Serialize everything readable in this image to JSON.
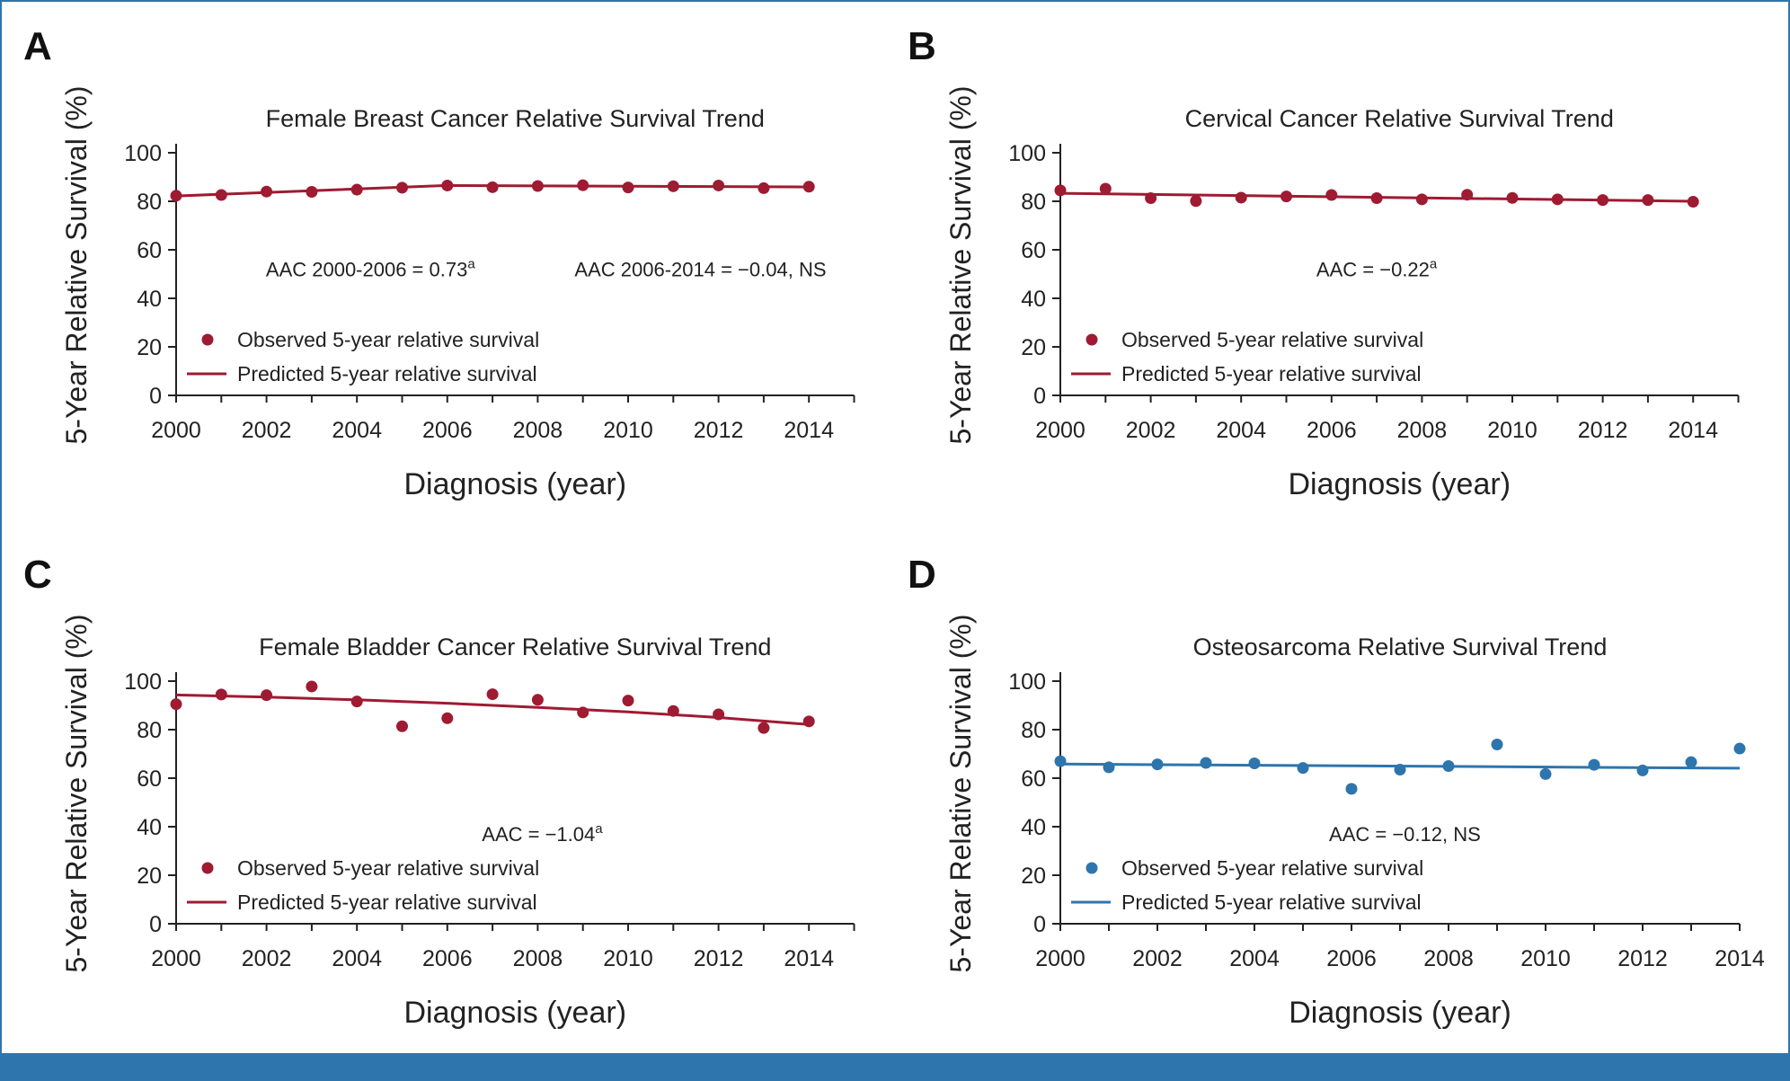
{
  "colors": {
    "red": "#9e1b32",
    "blue": "#2e75ad",
    "border": "#2e75ad"
  },
  "panels": [
    {
      "letter": "A",
      "title": "Female Breast Cancer Relative Survival Trend",
      "ylabel": "5-Year Relative Survival (%)",
      "xlabel": "Diagnosis (year)",
      "color": "#9e1b32",
      "legend": {
        "observed": "Observed 5-year relative survival",
        "predicted": "Predicted 5-year relative survival"
      },
      "annotations": [
        {
          "text": "AAC 2000-2006 = 0.73",
          "sup": "a",
          "year": 2004.3,
          "value": 52
        },
        {
          "text": "AAC 2006-2014 = −0.04, NS",
          "sup": "",
          "year": 2011.6,
          "value": 52
        }
      ]
    },
    {
      "letter": "B",
      "title": "Cervical Cancer Relative Survival Trend",
      "ylabel": "5-Year Relative Survival (%)",
      "xlabel": "Diagnosis (year)",
      "color": "#9e1b32",
      "legend": {
        "observed": "Observed 5-year relative survival",
        "predicted": "Predicted 5-year relative survival"
      },
      "annotations": [
        {
          "text": "AAC = −0.22",
          "sup": "a",
          "year": 2007.0,
          "value": 52
        }
      ]
    },
    {
      "letter": "C",
      "title": "Female Bladder Cancer Relative Survival Trend",
      "ylabel": "5-Year Relative Survival (%)",
      "xlabel": "Diagnosis (year)",
      "color": "#9e1b32",
      "legend": {
        "observed": "Observed 5-year relative survival",
        "predicted": "Predicted 5-year relative survival"
      },
      "annotations": [
        {
          "text": "AAC = −1.04",
          "sup": "a",
          "year": 2008.1,
          "value": 37
        }
      ]
    },
    {
      "letter": "D",
      "title": "Osteosarcoma Relative Survival Trend",
      "ylabel": "5-Year Relative Survival (%)",
      "xlabel": "Diagnosis (year)",
      "color": "#2e75ad",
      "legend": {
        "observed": "Observed 5-year relative survival",
        "predicted": "Predicted 5-year relative survival"
      },
      "annotations": [
        {
          "text": "AAC = −0.12, NS",
          "sup": "",
          "year": 2007.1,
          "value": 37
        }
      ]
    }
  ],
  "chart_data": [
    {
      "type": "scatter",
      "title": "Female Breast Cancer Relative Survival Trend",
      "xlabel": "Diagnosis (year)",
      "ylabel": "5-Year Relative Survival (%)",
      "xlim": [
        2000,
        2015
      ],
      "ylim": [
        0,
        100
      ],
      "xticks": [
        2000,
        2002,
        2004,
        2006,
        2008,
        2010,
        2012,
        2014
      ],
      "yticks": [
        0,
        20,
        40,
        60,
        80,
        100
      ],
      "series": [
        {
          "name": "Observed 5-year relative survival",
          "kind": "points",
          "x": [
            2000,
            2001,
            2002,
            2003,
            2004,
            2005,
            2006,
            2007,
            2008,
            2009,
            2010,
            2011,
            2012,
            2013,
            2014
          ],
          "y": [
            82.3,
            82.6,
            84.0,
            83.9,
            84.8,
            85.6,
            86.5,
            85.8,
            86.3,
            86.6,
            85.7,
            86.2,
            86.5,
            85.4,
            86.0
          ]
        },
        {
          "name": "Predicted 5-year relative survival",
          "kind": "line",
          "x": [
            2000,
            2006,
            2014
          ],
          "y": [
            82.2,
            86.5,
            85.9
          ]
        }
      ]
    },
    {
      "type": "scatter",
      "title": "Cervical Cancer Relative Survival Trend",
      "xlabel": "Diagnosis (year)",
      "ylabel": "5-Year Relative Survival (%)",
      "xlim": [
        2000,
        2015
      ],
      "ylim": [
        0,
        100
      ],
      "xticks": [
        2000,
        2002,
        2004,
        2006,
        2008,
        2010,
        2012,
        2014
      ],
      "yticks": [
        0,
        20,
        40,
        60,
        80,
        100
      ],
      "series": [
        {
          "name": "Observed 5-year relative survival",
          "kind": "points",
          "x": [
            2000,
            2001,
            2002,
            2003,
            2004,
            2005,
            2006,
            2007,
            2008,
            2009,
            2010,
            2011,
            2012,
            2013,
            2014
          ],
          "y": [
            84.5,
            85.2,
            81.3,
            80.1,
            81.5,
            82.0,
            82.6,
            81.3,
            80.8,
            82.7,
            81.4,
            80.8,
            80.5,
            80.5,
            79.8
          ]
        },
        {
          "name": "Predicted 5-year relative survival",
          "kind": "line",
          "x": [
            2000,
            2014
          ],
          "y": [
            83.3,
            80.0
          ]
        }
      ]
    },
    {
      "type": "scatter",
      "title": "Female Bladder Cancer Relative Survival Trend",
      "xlabel": "Diagnosis (year)",
      "ylabel": "5-Year Relative Survival (%)",
      "xlim": [
        2000,
        2015
      ],
      "ylim": [
        0,
        100
      ],
      "xticks": [
        2000,
        2002,
        2004,
        2006,
        2008,
        2010,
        2012,
        2014
      ],
      "yticks": [
        0,
        20,
        40,
        60,
        80,
        100
      ],
      "series": [
        {
          "name": "Observed 5-year relative survival",
          "kind": "points",
          "x": [
            2000,
            2001,
            2002,
            2003,
            2004,
            2005,
            2006,
            2007,
            2008,
            2009,
            2010,
            2011,
            2012,
            2013,
            2014
          ],
          "y": [
            90.5,
            94.5,
            94.2,
            97.8,
            91.6,
            81.4,
            84.7,
            94.6,
            92.3,
            87.1,
            92.0,
            87.7,
            86.3,
            80.7,
            83.4
          ]
        },
        {
          "name": "Predicted 5-year relative survival",
          "kind": "line",
          "x": [
            2000,
            2002,
            2004,
            2006,
            2008,
            2010,
            2012,
            2014
          ],
          "y": [
            94.3,
            93.4,
            92.3,
            90.9,
            89.2,
            87.3,
            85.0,
            82.1
          ]
        }
      ]
    },
    {
      "type": "scatter",
      "title": "Osteosarcoma Relative Survival Trend",
      "xlabel": "Diagnosis (year)",
      "ylabel": "5-Year Relative Survival (%)",
      "xlim": [
        2000,
        2014
      ],
      "ylim": [
        0,
        100
      ],
      "xticks": [
        2000,
        2002,
        2004,
        2006,
        2008,
        2010,
        2012,
        2014
      ],
      "yticks": [
        0,
        20,
        40,
        60,
        80,
        100
      ],
      "series": [
        {
          "name": "Observed 5-year relative survival",
          "kind": "points",
          "x": [
            2000,
            2001,
            2002,
            2003,
            2004,
            2005,
            2006,
            2007,
            2008,
            2009,
            2010,
            2011,
            2012,
            2013,
            2014
          ],
          "y": [
            67.0,
            64.5,
            65.7,
            66.3,
            66.1,
            64.2,
            55.6,
            63.5,
            65.0,
            73.9,
            61.7,
            65.5,
            63.2,
            66.6,
            72.2
          ]
        },
        {
          "name": "Predicted 5-year relative survival",
          "kind": "line",
          "x": [
            2000,
            2014
          ],
          "y": [
            65.8,
            64.1
          ]
        }
      ]
    }
  ]
}
